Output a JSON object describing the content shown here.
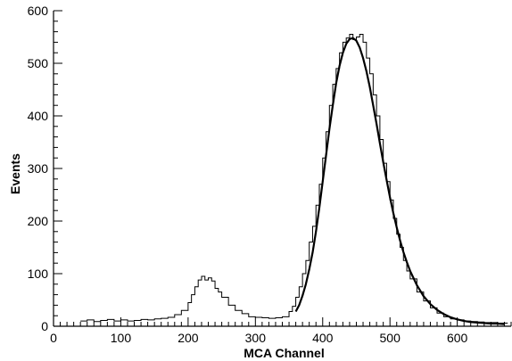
{
  "colors": {
    "background": "#ffffff",
    "axis": "#000000",
    "histogram": "#000000",
    "fit": "#000000"
  },
  "chart_data": {
    "type": "line",
    "title": "",
    "xlabel": "MCA Channel",
    "ylabel": "Events",
    "xlim": [
      0,
      680
    ],
    "ylim": [
      0,
      600
    ],
    "x_ticks": [
      "0",
      "100",
      "200",
      "300",
      "400",
      "500",
      "600"
    ],
    "y_ticks": [
      "0",
      "100",
      "200",
      "300",
      "400",
      "500",
      "600"
    ],
    "x_tick_values": [
      0,
      100,
      200,
      300,
      400,
      500,
      600
    ],
    "y_tick_values": [
      0,
      100,
      200,
      300,
      400,
      500,
      600
    ],
    "grid": false,
    "legend": "none",
    "series": [
      {
        "style": "histogram",
        "x": [
          40,
          50,
          60,
          70,
          80,
          90,
          100,
          110,
          120,
          130,
          140,
          150,
          160,
          170,
          180,
          190,
          200,
          205,
          210,
          215,
          220,
          225,
          230,
          235,
          240,
          245,
          250,
          260,
          270,
          280,
          290,
          300,
          310,
          320,
          330,
          340,
          350,
          355,
          360,
          365,
          370,
          375,
          380,
          385,
          390,
          395,
          400,
          405,
          410,
          415,
          420,
          425,
          430,
          435,
          440,
          445,
          450,
          455,
          460,
          465,
          470,
          475,
          480,
          485,
          490,
          495,
          500,
          505,
          510,
          515,
          520,
          525,
          530,
          540,
          550,
          560,
          570,
          580,
          590,
          600,
          610,
          620,
          630,
          640,
          650,
          660,
          670
        ],
        "y": [
          10,
          12,
          9,
          11,
          13,
          10,
          12,
          10,
          11,
          13,
          12,
          14,
          15,
          17,
          22,
          30,
          45,
          60,
          75,
          88,
          95,
          88,
          92,
          86,
          72,
          65,
          55,
          40,
          30,
          24,
          18,
          17,
          16,
          15,
          16,
          18,
          28,
          38,
          55,
          75,
          100,
          125,
          160,
          190,
          230,
          270,
          320,
          370,
          420,
          460,
          490,
          520,
          540,
          548,
          555,
          545,
          550,
          555,
          540,
          510,
          480,
          440,
          400,
          355,
          310,
          275,
          240,
          205,
          175,
          150,
          125,
          105,
          90,
          65,
          48,
          35,
          25,
          18,
          14,
          12,
          10,
          9,
          8,
          7,
          7,
          6,
          6
        ]
      },
      {
        "style": "fit",
        "x": [
          360,
          365,
          370,
          375,
          380,
          385,
          390,
          395,
          400,
          405,
          410,
          415,
          420,
          425,
          430,
          435,
          440,
          445,
          450,
          455,
          460,
          465,
          470,
          475,
          480,
          485,
          490,
          495,
          500,
          505,
          510,
          515,
          520,
          525,
          530,
          540,
          550,
          560,
          570,
          580,
          590,
          600,
          610,
          620,
          630,
          640,
          650,
          660,
          670
        ],
        "y": [
          28,
          40,
          58,
          80,
          108,
          140,
          180,
          225,
          275,
          325,
          375,
          420,
          462,
          495,
          520,
          537,
          546,
          548,
          543,
          530,
          510,
          485,
          455,
          420,
          385,
          348,
          312,
          278,
          245,
          215,
          188,
          163,
          141,
          122,
          105,
          78,
          57,
          42,
          31,
          23,
          17,
          13,
          10,
          8,
          7,
          6,
          5,
          5,
          4
        ]
      }
    ]
  }
}
